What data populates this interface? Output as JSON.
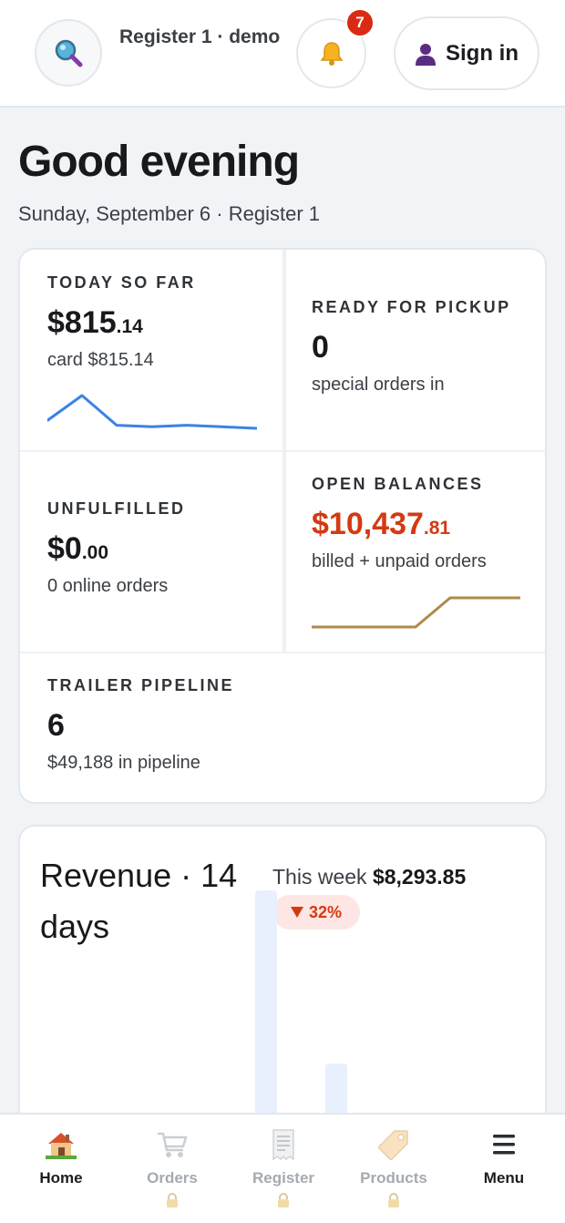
{
  "header": {
    "register_title": "Register 1 · demo",
    "notification_count": "7",
    "signin_label": "Sign in"
  },
  "greeting": {
    "title": "Good evening",
    "subtitle": "Sunday, September 6 · Register 1"
  },
  "stats": {
    "today": {
      "label": "TODAY SO FAR",
      "value_main": "$815",
      "value_cents": ".14",
      "sub": "card $815.14",
      "trend": [
        0.2,
        1.0,
        0.05,
        0.0,
        0.05,
        0.0,
        -0.05
      ]
    },
    "pickup": {
      "label": "READY FOR PICKUP",
      "value": "0",
      "sub": "special orders in"
    },
    "unfulfilled": {
      "label": "UNFULFILLED",
      "value_main": "$0",
      "value_cents": ".00",
      "sub": "0 online orders"
    },
    "balances": {
      "label": "OPEN BALANCES",
      "value_main": "$10,437",
      "value_cents": ".81",
      "sub": "billed + unpaid orders",
      "color": "#d33a12",
      "trend_color": "#b08a4a",
      "trend": [
        0,
        0,
        0,
        0,
        1,
        1,
        1
      ]
    },
    "pipeline": {
      "label": "TRAILER PIPELINE",
      "value": "6",
      "sub": "$49,188 in pipeline"
    }
  },
  "revenue": {
    "title": "Revenue · 14 days",
    "week_label": "This week",
    "week_value": "$8,293.85",
    "delta": "32%",
    "delta_direction": "down",
    "bars_visible": [
      0.92,
      0.42
    ]
  },
  "nav": {
    "items": [
      {
        "label": "Home",
        "icon": "home-icon",
        "locked": false
      },
      {
        "label": "Orders",
        "icon": "cart-icon",
        "locked": true
      },
      {
        "label": "Register",
        "icon": "receipt-icon",
        "locked": true
      },
      {
        "label": "Products",
        "icon": "tag-icon",
        "locked": true
      },
      {
        "label": "Menu",
        "icon": "menu-icon",
        "locked": false
      }
    ]
  },
  "colors": {
    "accent_blue": "#3b82e6",
    "danger": "#d92b14",
    "gold": "#b08a4a"
  }
}
